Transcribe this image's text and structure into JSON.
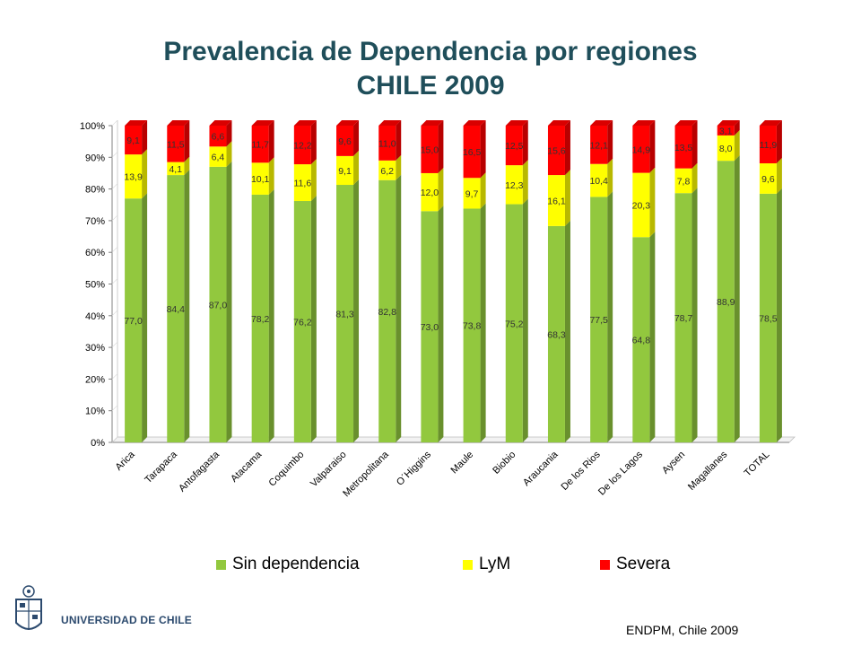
{
  "header": {
    "title_line1": "Prevalencia de Dependencia por regiones",
    "title_line2": "CHILE 2009"
  },
  "footer": {
    "source": "ENDPM, Chile 2009",
    "institution": "UNIVERSIDAD DE CHILE"
  },
  "colors": {
    "sin": "#92c83e",
    "lym": "#ffff00",
    "sev": "#ff0000",
    "title": "#1f4e5a"
  },
  "chart_data": {
    "type": "bar",
    "stacked": true,
    "title": "Prevalencia de Dependencia por regiones CHILE 2009",
    "xlabel": "",
    "ylabel": "",
    "ylim": [
      0,
      100
    ],
    "y_ticks": [
      "0%",
      "10%",
      "20%",
      "30%",
      "40%",
      "50%",
      "60%",
      "70%",
      "80%",
      "90%",
      "100%"
    ],
    "legend_position": "bottom",
    "categories": [
      "Arica",
      "Tarapaca",
      "Antofagasta",
      "Atacama",
      "Coquimbo",
      "Valparaiso",
      "Metropolitana",
      "O´Higgins",
      "Maule",
      "Biobio",
      "Araucania",
      "De los Rios",
      "De los Lagos",
      "Aysen",
      "Magallanes",
      "TOTAL"
    ],
    "series": [
      {
        "name": "Sin dependencia",
        "color": "#92c83e",
        "values": [
          77.0,
          84.4,
          87.0,
          78.2,
          76.2,
          81.3,
          82.8,
          73.0,
          73.8,
          75.2,
          68.3,
          77.5,
          64.8,
          78.7,
          88.9,
          78.5
        ],
        "labels": [
          "77,0",
          "84,4",
          "87,0",
          "78,2",
          "76,2",
          "81,3",
          "82,8",
          "73,0",
          "73,8",
          "75,2",
          "68,3",
          "77,5",
          "64,8",
          "78,7",
          "88,9",
          "78,5"
        ]
      },
      {
        "name": "LyM",
        "color": "#ffff00",
        "values": [
          13.9,
          4.1,
          6.4,
          10.1,
          11.6,
          9.1,
          6.2,
          12.0,
          9.7,
          12.3,
          16.1,
          10.4,
          20.3,
          7.8,
          8.0,
          9.6
        ],
        "labels": [
          "13,9",
          "4,1",
          "6,4",
          "10,1",
          "11,6",
          "9,1",
          "6,2",
          "12,0",
          "9,7",
          "12,3",
          "16,1",
          "10,4",
          "20,3",
          "7,8",
          "8,0",
          "9,6"
        ]
      },
      {
        "name": "Severa",
        "color": "#ff0000",
        "values": [
          9.1,
          11.5,
          6.6,
          11.7,
          12.2,
          9.6,
          11.0,
          15.0,
          16.5,
          12.5,
          15.6,
          12.1,
          14.9,
          13.5,
          3.1,
          11.9
        ],
        "labels": [
          "9,1",
          "11,5",
          "6,6",
          "11,7",
          "12,2",
          "9,6",
          "11,0",
          "15,0",
          "16,5",
          "12,5",
          "15,6",
          "12,1",
          "14,9",
          "13,5",
          "3,1",
          "11,9"
        ]
      }
    ]
  }
}
